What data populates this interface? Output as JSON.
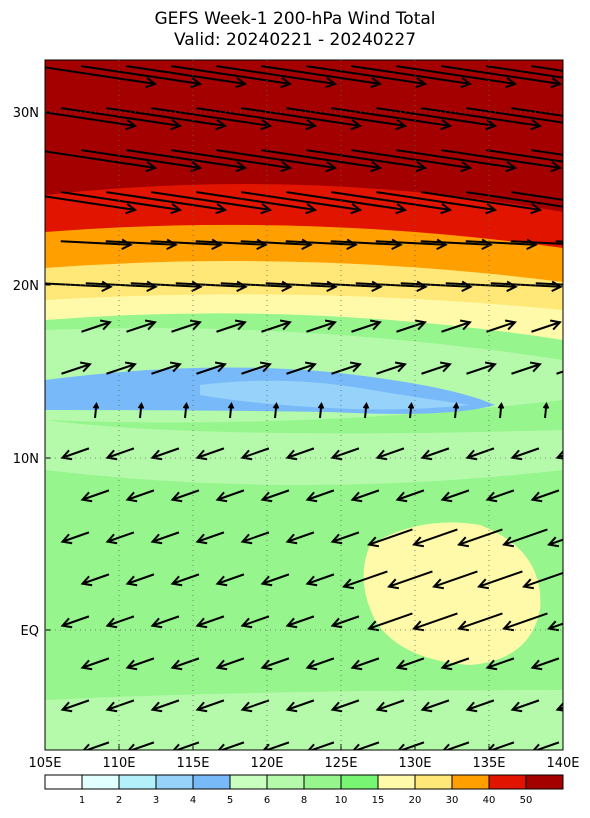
{
  "header": {
    "title": "GEFS Week-1 200-hPa Wind Total",
    "subtitle": "Valid: 20240221 - 20240227"
  },
  "lon_labels": [
    "105E",
    "110E",
    "115E",
    "120E",
    "125E",
    "130E",
    "135E",
    "140E"
  ],
  "lat_labels": [
    "30N",
    "20N",
    "10N",
    "EQ"
  ],
  "colorbar": {
    "levels": [
      1,
      2,
      3,
      4,
      5,
      6,
      8,
      10,
      15,
      20,
      30,
      40,
      50
    ],
    "colors": [
      "#ffffff",
      "#e1ffff",
      "#b4f0fa",
      "#96d2fa",
      "#78b9fa",
      "#c8ffbe",
      "#b4faaa",
      "#96f58c",
      "#78f573",
      "#fffaaa",
      "#ffe878",
      "#ffa000",
      "#e11400",
      "#a50000"
    ]
  }
}
